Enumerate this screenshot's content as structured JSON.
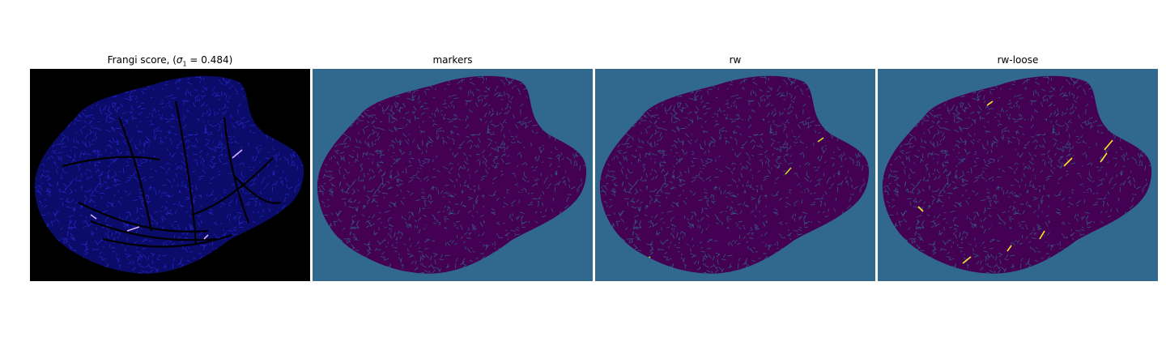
{
  "figure": {
    "panels": [
      {
        "title_pre": "Frangi score, (",
        "title_sym": "σ",
        "title_sub": "1",
        "title_post": " = 0.484)",
        "colors": {
          "background": "#000000",
          "tissue": "#0b0b6a",
          "speckle": "#2b2bd0",
          "vessel": "#000000",
          "highlight": "#d8b0ff"
        }
      },
      {
        "title": "markers",
        "colors": {
          "background": "#31688e",
          "tissue": "#440154",
          "speckle": "#31688e",
          "vessel": "#440154",
          "highlight": "#31688e"
        }
      },
      {
        "title": "rw",
        "colors": {
          "background": "#31688e",
          "tissue": "#440154",
          "speckle": "#31688e",
          "vessel": "#440154",
          "highlight": "#c8e020"
        }
      },
      {
        "title": "rw-loose",
        "colors": {
          "background": "#31688e",
          "tissue": "#440154",
          "speckle": "#31688e",
          "vessel": "#440154",
          "highlight": "#fde725"
        }
      }
    ]
  }
}
